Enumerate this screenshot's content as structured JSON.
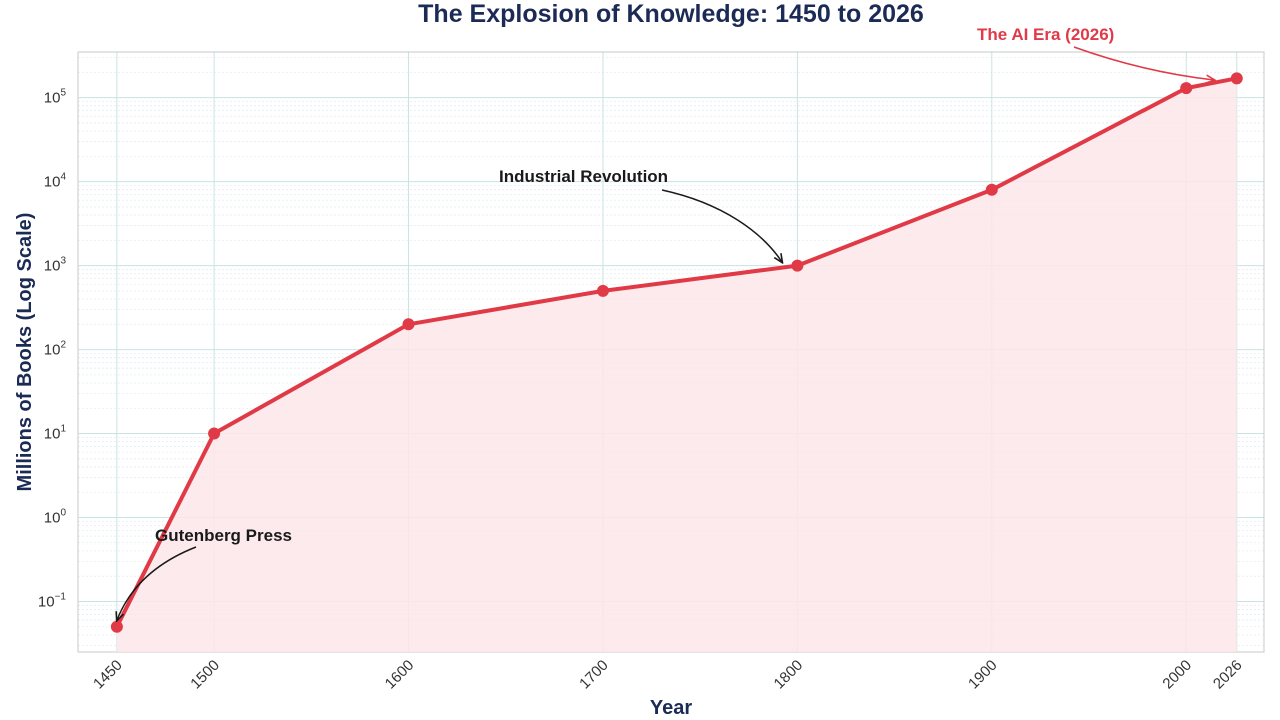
{
  "chart_data": {
    "type": "line",
    "title": "The Explosion of Knowledge: 1450 to 2026",
    "xlabel": "Year",
    "ylabel": "Millions of Books (Log Scale)",
    "y_scale": "log",
    "x": [
      1450,
      1500,
      1600,
      1700,
      1800,
      1900,
      2000,
      2026
    ],
    "x_tick_labels": [
      "1450",
      "1500",
      "1600",
      "1700",
      "1800",
      "1900",
      "2000",
      "2026"
    ],
    "xlim": [
      1430,
      2040
    ],
    "ylim": [
      0.025,
      350000
    ],
    "y_ticks": [
      {
        "base": "10",
        "exp": "−1",
        "value": 0.1
      },
      {
        "base": "10",
        "exp": "0",
        "value": 1
      },
      {
        "base": "10",
        "exp": "1",
        "value": 10
      },
      {
        "base": "10",
        "exp": "2",
        "value": 100
      },
      {
        "base": "10",
        "exp": "3",
        "value": 1000
      },
      {
        "base": "10",
        "exp": "4",
        "value": 10000
      },
      {
        "base": "10",
        "exp": "5",
        "value": 100000
      }
    ],
    "series": [
      {
        "values": [
          0.05,
          10,
          200,
          500,
          1000,
          8000,
          130000,
          170000
        ],
        "color": "#e03a47",
        "fill": "#fbe6ea"
      }
    ],
    "annotations": [
      {
        "text": "Gutenberg Press",
        "x": 1450,
        "y": 0.05,
        "color": "#1a1a1a"
      },
      {
        "text": "Industrial Revolution",
        "x": 1800,
        "y": 1000,
        "color": "#1a1a1a"
      },
      {
        "text": "The AI Era (2026)",
        "x": 2026,
        "y": 170000,
        "color": "#e03a47"
      }
    ],
    "grid": true,
    "colors": {
      "accent": "#e03a47",
      "grid_major": "#c9e3e3",
      "grid_minor": "#e3eef0",
      "title": "#1c2b55",
      "frame": "#c8c8c8"
    }
  }
}
